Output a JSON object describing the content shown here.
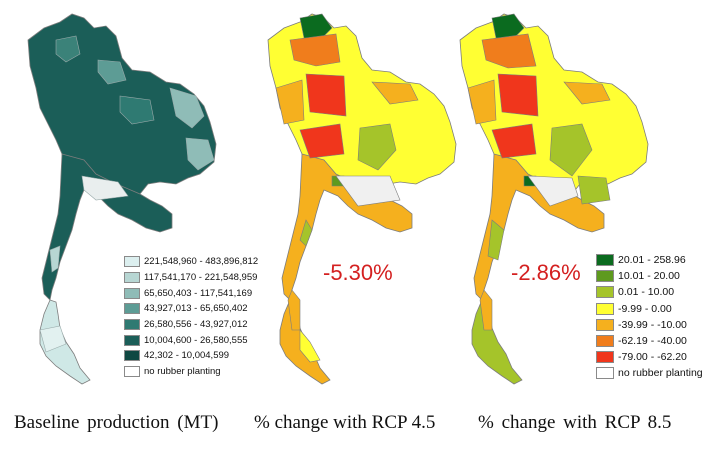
{
  "panels": [
    {
      "caption": "Baseline production (MT)",
      "change_label": "",
      "legend": [
        {
          "label": "221,548,960 - 483,896,812",
          "color": "#dcefef"
        },
        {
          "label": "117,541,170 - 221,548,959",
          "color": "#b7d6d3"
        },
        {
          "label": "65,650,403 - 117,541,169",
          "color": "#8fbcb7"
        },
        {
          "label": "43,927,013 - 65,650,402",
          "color": "#5d9c95"
        },
        {
          "label": "26,580,556 - 43,927,012",
          "color": "#2f7a72"
        },
        {
          "label": "10,004,600 - 26,580,555",
          "color": "#1b5e58"
        },
        {
          "label": "42,302 - 10,004,599",
          "color": "#0f4842"
        },
        {
          "label": "no rubber planting",
          "color": "#ffffff"
        }
      ]
    },
    {
      "caption": "% change with RCP 4.5",
      "change_label": "-5.30%"
    },
    {
      "caption": "% change with RCP 8.5",
      "change_label": "-2.86%",
      "legend": [
        {
          "label": "20.01 - 258.96",
          "color": "#0b6b1f"
        },
        {
          "label": "10.01 - 20.00",
          "color": "#5e9a1e"
        },
        {
          "label": "0.01 - 10.00",
          "color": "#a5c42a"
        },
        {
          "label": "-9.99 - 0.00",
          "color": "#ffff33"
        },
        {
          "label": "-39.99 - -10.00",
          "color": "#f5b01e"
        },
        {
          "label": "-62.19 - -40.00",
          "color": "#f07d1c"
        },
        {
          "label": "-79.00 - -62.20",
          "color": "#f0361c"
        },
        {
          "label": "no rubber planting",
          "color": "#ffffff"
        }
      ]
    }
  ],
  "colors": {
    "change_text": "#d42020",
    "outline": "#7d7d7d"
  }
}
